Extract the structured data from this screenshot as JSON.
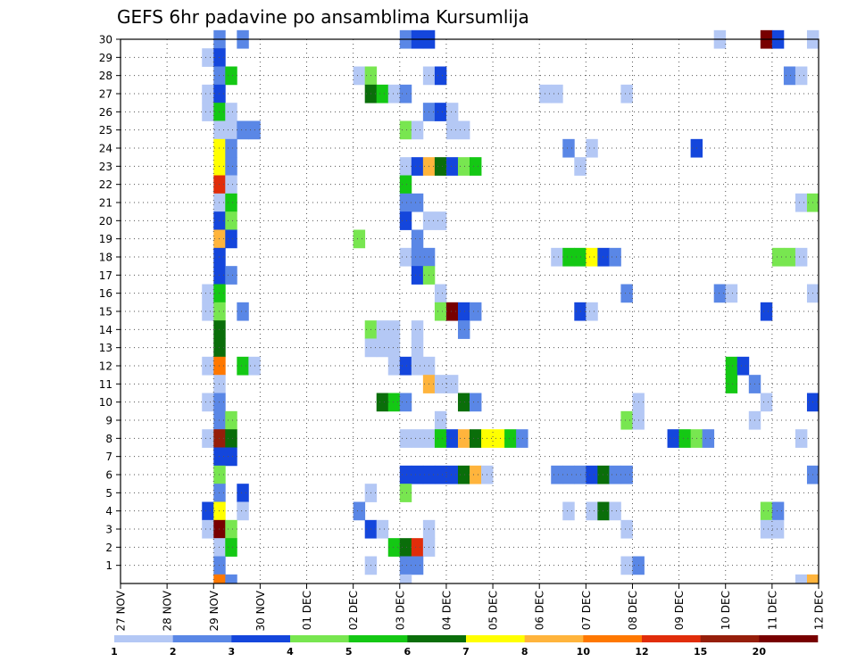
{
  "chart_data": {
    "type": "heatmap",
    "title": "GEFS 6hr padavine po ansamblima Kursumlija",
    "xlabel": "",
    "ylabel": "",
    "x_ticks": [
      "27 NOV",
      "28 NOV",
      "29 NOV",
      "30 NOV",
      "01 DEC",
      "02 DEC",
      "03 DEC",
      "04 DEC",
      "05 DEC",
      "06 DEC",
      "07 DEC",
      "08 DEC",
      "09 DEC",
      "10 DEC",
      "11 DEC",
      "12 DEC"
    ],
    "x_range_days": [
      0,
      15
    ],
    "y_ticks": [
      1,
      2,
      3,
      4,
      5,
      6,
      7,
      8,
      9,
      10,
      11,
      12,
      13,
      14,
      15,
      16,
      17,
      18,
      19,
      20,
      21,
      22,
      23,
      24,
      25,
      26,
      27,
      28,
      29,
      30
    ],
    "y_range": [
      0,
      30
    ],
    "grid": true,
    "colorbar": {
      "labels": [
        "1",
        "2",
        "3",
        "4",
        "5",
        "6",
        "7",
        "8",
        "10",
        "12",
        "15",
        "20"
      ],
      "colors": [
        "#b4c8f5",
        "#5a87e6",
        "#1446dc",
        "#78e650",
        "#14c814",
        "#0a6e0a",
        "#ffff00",
        "#ffb43c",
        "#ff7800",
        "#e12d0a",
        "#961e0a",
        "#780000"
      ]
    },
    "cells": [
      [
        2,
        30,
        1
      ],
      [
        2.5,
        30,
        1
      ],
      [
        6,
        30,
        1
      ],
      [
        6.25,
        30,
        2
      ],
      [
        6.5,
        30,
        2
      ],
      [
        12.75,
        30,
        0
      ],
      [
        13.75,
        30,
        11
      ],
      [
        14,
        30,
        2
      ],
      [
        14.75,
        30,
        0
      ],
      [
        1.75,
        29,
        0
      ],
      [
        2,
        29,
        2
      ],
      [
        2,
        28,
        1
      ],
      [
        2.25,
        28,
        4
      ],
      [
        5,
        28,
        0
      ],
      [
        5.25,
        28,
        3
      ],
      [
        6.5,
        28,
        0
      ],
      [
        6.75,
        28,
        2
      ],
      [
        14.25,
        28,
        1
      ],
      [
        14.5,
        28,
        0
      ],
      [
        1.75,
        27,
        0
      ],
      [
        2,
        27,
        2
      ],
      [
        5.25,
        27,
        5
      ],
      [
        5.5,
        27,
        4
      ],
      [
        5.75,
        27,
        0
      ],
      [
        6,
        27,
        1
      ],
      [
        9,
        27,
        0
      ],
      [
        9.25,
        27,
        0
      ],
      [
        10.75,
        27,
        0
      ],
      [
        1.75,
        26,
        0
      ],
      [
        2,
        26,
        4
      ],
      [
        2.25,
        26,
        0
      ],
      [
        6.5,
        26,
        1
      ],
      [
        6.75,
        26,
        2
      ],
      [
        7,
        26,
        0
      ],
      [
        2,
        25,
        0
      ],
      [
        2.25,
        25,
        0
      ],
      [
        2.5,
        25,
        1
      ],
      [
        2.75,
        25,
        1
      ],
      [
        6,
        25,
        3
      ],
      [
        6.25,
        25,
        0
      ],
      [
        7,
        25,
        0
      ],
      [
        7.25,
        25,
        0
      ],
      [
        2,
        24,
        6
      ],
      [
        2.25,
        24,
        1
      ],
      [
        9.5,
        24,
        1
      ],
      [
        10,
        24,
        0
      ],
      [
        12.25,
        24,
        2
      ],
      [
        2,
        23,
        6
      ],
      [
        2.25,
        23,
        1
      ],
      [
        6,
        23,
        0
      ],
      [
        6.25,
        23,
        2
      ],
      [
        6.5,
        23,
        7
      ],
      [
        6.75,
        23,
        5
      ],
      [
        7,
        23,
        2
      ],
      [
        7.25,
        23,
        3
      ],
      [
        7.5,
        23,
        4
      ],
      [
        9.75,
        23,
        0
      ],
      [
        2,
        22,
        9
      ],
      [
        2.25,
        22,
        0
      ],
      [
        6,
        22,
        4
      ],
      [
        2,
        21,
        0
      ],
      [
        2.25,
        21,
        4
      ],
      [
        6,
        21,
        1
      ],
      [
        6.25,
        21,
        1
      ],
      [
        14.5,
        21,
        0
      ],
      [
        14.75,
        21,
        3
      ],
      [
        2,
        20,
        2
      ],
      [
        2.25,
        20,
        3
      ],
      [
        6,
        20,
        2
      ],
      [
        6.5,
        20,
        0
      ],
      [
        6.75,
        20,
        0
      ],
      [
        2,
        19,
        7
      ],
      [
        2.25,
        19,
        2
      ],
      [
        5,
        19,
        3
      ],
      [
        6.25,
        19,
        1
      ],
      [
        2,
        18,
        2
      ],
      [
        6,
        18,
        0
      ],
      [
        6.25,
        18,
        1
      ],
      [
        6.5,
        18,
        1
      ],
      [
        9.25,
        18,
        0
      ],
      [
        9.5,
        18,
        4
      ],
      [
        9.75,
        18,
        4
      ],
      [
        10,
        18,
        6
      ],
      [
        10.25,
        18,
        2
      ],
      [
        10.5,
        18,
        1
      ],
      [
        14,
        18,
        3
      ],
      [
        14.25,
        18,
        3
      ],
      [
        14.5,
        18,
        0
      ],
      [
        2,
        17,
        2
      ],
      [
        2.25,
        17,
        1
      ],
      [
        6.25,
        17,
        2
      ],
      [
        6.5,
        17,
        3
      ],
      [
        1.75,
        16,
        0
      ],
      [
        2,
        16,
        4
      ],
      [
        6.75,
        16,
        0
      ],
      [
        10.75,
        16,
        1
      ],
      [
        12.75,
        16,
        1
      ],
      [
        13,
        16,
        0
      ],
      [
        14.75,
        16,
        0
      ],
      [
        1.75,
        15,
        0
      ],
      [
        2,
        15,
        3
      ],
      [
        2.5,
        15,
        1
      ],
      [
        6.75,
        15,
        3
      ],
      [
        7,
        15,
        11
      ],
      [
        7.25,
        15,
        2
      ],
      [
        7.5,
        15,
        1
      ],
      [
        9.75,
        15,
        2
      ],
      [
        10,
        15,
        0
      ],
      [
        13.75,
        15,
        2
      ],
      [
        2,
        14,
        5
      ],
      [
        5.25,
        14,
        3
      ],
      [
        5.5,
        14,
        0
      ],
      [
        5.75,
        14,
        0
      ],
      [
        6.25,
        14,
        0
      ],
      [
        7.25,
        14,
        1
      ],
      [
        2,
        13,
        5
      ],
      [
        5.25,
        13,
        0
      ],
      [
        5.5,
        13,
        0
      ],
      [
        5.75,
        13,
        0
      ],
      [
        6.25,
        13,
        0
      ],
      [
        1.75,
        12,
        0
      ],
      [
        2,
        12,
        8
      ],
      [
        2.5,
        12,
        4
      ],
      [
        2.75,
        12,
        0
      ],
      [
        5.75,
        12,
        0
      ],
      [
        6,
        12,
        2
      ],
      [
        6.25,
        12,
        0
      ],
      [
        6.5,
        12,
        0
      ],
      [
        13,
        12,
        4
      ],
      [
        13.25,
        12,
        2
      ],
      [
        2,
        11,
        0
      ],
      [
        6.5,
        11,
        7
      ],
      [
        6.75,
        11,
        0
      ],
      [
        7,
        11,
        0
      ],
      [
        13,
        11,
        4
      ],
      [
        13.5,
        11,
        1
      ],
      [
        1.75,
        10,
        0
      ],
      [
        2,
        10,
        1
      ],
      [
        5.5,
        10,
        5
      ],
      [
        5.75,
        10,
        4
      ],
      [
        6,
        10,
        1
      ],
      [
        7.25,
        10,
        5
      ],
      [
        7.5,
        10,
        1
      ],
      [
        11,
        10,
        0
      ],
      [
        13.75,
        10,
        0
      ],
      [
        14.75,
        10,
        2
      ],
      [
        2,
        9,
        1
      ],
      [
        2.25,
        9,
        3
      ],
      [
        6.75,
        9,
        0
      ],
      [
        10.75,
        9,
        3
      ],
      [
        11,
        9,
        0
      ],
      [
        13.5,
        9,
        0
      ],
      [
        1.75,
        8,
        0
      ],
      [
        2,
        8,
        10
      ],
      [
        2.25,
        8,
        5
      ],
      [
        6,
        8,
        0
      ],
      [
        6.25,
        8,
        0
      ],
      [
        6.5,
        8,
        0
      ],
      [
        6.75,
        8,
        4
      ],
      [
        7,
        8,
        2
      ],
      [
        7.25,
        8,
        7
      ],
      [
        7.5,
        8,
        5
      ],
      [
        7.75,
        8,
        6
      ],
      [
        8,
        8,
        6
      ],
      [
        8.25,
        8,
        4
      ],
      [
        8.5,
        8,
        1
      ],
      [
        11.75,
        8,
        2
      ],
      [
        12,
        8,
        4
      ],
      [
        12.25,
        8,
        3
      ],
      [
        12.5,
        8,
        1
      ],
      [
        14.5,
        8,
        0
      ],
      [
        2,
        7,
        2
      ],
      [
        2.25,
        7,
        2
      ],
      [
        2,
        6,
        3
      ],
      [
        6,
        6,
        2
      ],
      [
        6.25,
        6,
        2
      ],
      [
        6.5,
        6,
        2
      ],
      [
        6.75,
        6,
        2
      ],
      [
        7,
        6,
        2
      ],
      [
        7.25,
        6,
        5
      ],
      [
        7.5,
        6,
        7
      ],
      [
        7.75,
        6,
        0
      ],
      [
        9.25,
        6,
        1
      ],
      [
        9.5,
        6,
        1
      ],
      [
        9.75,
        6,
        1
      ],
      [
        10,
        6,
        2
      ],
      [
        10.25,
        6,
        5
      ],
      [
        10.5,
        6,
        1
      ],
      [
        10.75,
        6,
        1
      ],
      [
        14.75,
        6,
        1
      ],
      [
        2,
        5,
        1
      ],
      [
        2.5,
        5,
        2
      ],
      [
        5.25,
        5,
        0
      ],
      [
        6,
        5,
        3
      ],
      [
        1.75,
        4,
        2
      ],
      [
        2,
        4,
        6
      ],
      [
        2.5,
        4,
        0
      ],
      [
        5,
        4,
        1
      ],
      [
        9.5,
        4,
        0
      ],
      [
        10,
        4,
        0
      ],
      [
        10.25,
        4,
        5
      ],
      [
        10.5,
        4,
        0
      ],
      [
        13.75,
        4,
        3
      ],
      [
        14,
        4,
        1
      ],
      [
        1.75,
        3,
        0
      ],
      [
        2,
        3,
        11
      ],
      [
        2.25,
        3,
        3
      ],
      [
        5.25,
        3,
        2
      ],
      [
        5.5,
        3,
        0
      ],
      [
        6.5,
        3,
        0
      ],
      [
        10.75,
        3,
        0
      ],
      [
        13.75,
        3,
        0
      ],
      [
        14,
        3,
        0
      ],
      [
        2,
        2,
        0
      ],
      [
        2.25,
        2,
        4
      ],
      [
        5.75,
        2,
        4
      ],
      [
        6,
        2,
        5
      ],
      [
        6.25,
        2,
        9
      ],
      [
        6.5,
        2,
        0
      ],
      [
        2,
        1,
        1
      ],
      [
        5.25,
        1,
        0
      ],
      [
        6,
        1,
        1
      ],
      [
        6.25,
        1,
        1
      ],
      [
        10.75,
        1,
        0
      ],
      [
        11,
        1,
        1
      ],
      [
        2,
        0,
        8
      ],
      [
        2.25,
        0,
        1
      ],
      [
        6,
        0,
        0
      ],
      [
        14.5,
        0,
        0
      ],
      [
        14.75,
        0,
        7
      ]
    ]
  }
}
